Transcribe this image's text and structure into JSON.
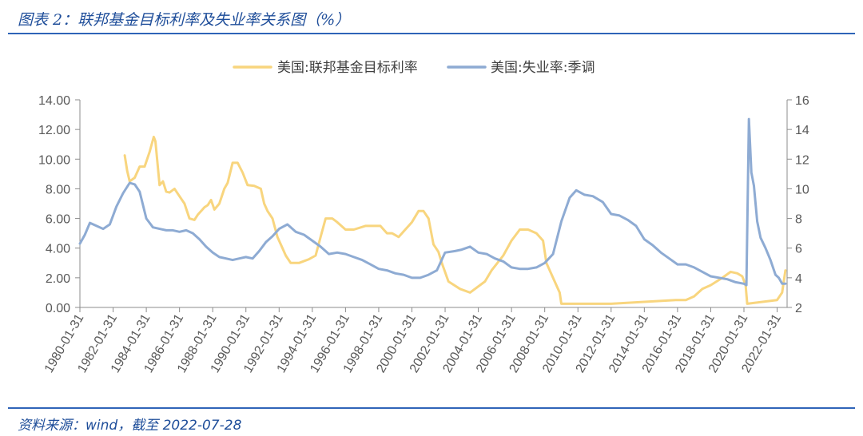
{
  "header": {
    "title": "图表 2：联邦基金目标利率及失业率关系图（%）"
  },
  "footer": {
    "source": "资料来源：wind，截至 2022-07-28"
  },
  "chart_data": {
    "type": "line",
    "xlabel": "",
    "ylabel_left": "",
    "ylabel_right": "",
    "x_ticks": [
      "1980-01-31",
      "1982-01-31",
      "1984-01-31",
      "1986-01-31",
      "1988-01-31",
      "1990-01-31",
      "1992-01-31",
      "1994-01-31",
      "1996-01-31",
      "1998-01-31",
      "2000-01-31",
      "2002-01-31",
      "2004-01-31",
      "2006-01-31",
      "2008-01-31",
      "2010-01-31",
      "2012-01-31",
      "2014-01-31",
      "2016-01-31",
      "2018-01-31",
      "2020-01-31",
      "2022-01-31"
    ],
    "x_range": [
      1980.0,
      2022.6
    ],
    "y_left": {
      "range": [
        0,
        14
      ],
      "ticks": [
        "0.00",
        "2.00",
        "4.00",
        "6.00",
        "8.00",
        "10.00",
        "12.00",
        "14.00"
      ]
    },
    "y_right": {
      "range": [
        2,
        16
      ],
      "ticks": [
        "2",
        "4",
        "6",
        "8",
        "10",
        "12",
        "14",
        "16"
      ]
    },
    "legend_position": "top-center",
    "grid": false,
    "series": [
      {
        "name": "美国:联邦基金目标利率",
        "axis": "left",
        "color": "#f8d57e",
        "x": [
          1982.7,
          1982.85,
          1983.0,
          1983.3,
          1983.6,
          1983.9,
          1984.2,
          1984.45,
          1984.55,
          1984.8,
          1985.0,
          1985.2,
          1985.4,
          1985.7,
          1986.0,
          1986.3,
          1986.6,
          1986.9,
          1987.1,
          1987.3,
          1987.5,
          1987.7,
          1987.9,
          1988.1,
          1988.4,
          1988.7,
          1988.9,
          1989.2,
          1989.5,
          1989.8,
          1990.1,
          1990.5,
          1990.9,
          1991.1,
          1991.3,
          1991.6,
          1991.9,
          1992.2,
          1992.4,
          1992.7,
          1993.2,
          1993.8,
          1994.2,
          1994.5,
          1994.8,
          1995.2,
          1995.5,
          1996.0,
          1996.5,
          1997.2,
          1997.6,
          1998.1,
          1998.5,
          1998.8,
          1999.2,
          1999.6,
          2000.0,
          2000.4,
          2000.7,
          2001.0,
          2001.3,
          2001.6,
          2001.8,
          2002.2,
          2002.9,
          2003.5,
          2004.4,
          2004.8,
          2005.5,
          2006.0,
          2006.5,
          2007.0,
          2007.5,
          2007.9,
          2008.1,
          2008.5,
          2008.9,
          2009.0,
          2012.0,
          2015.9,
          2016.5,
          2017.0,
          2017.5,
          2018.0,
          2018.7,
          2019.2,
          2019.6,
          2019.9,
          2020.1,
          2020.2,
          2022.0,
          2022.3,
          2022.5
        ],
        "y": [
          10.25,
          9.2,
          8.5,
          8.75,
          9.5,
          9.5,
          10.5,
          11.5,
          11.2,
          8.25,
          8.5,
          7.8,
          7.75,
          8.0,
          7.5,
          7.0,
          6.0,
          5.9,
          6.25,
          6.5,
          6.75,
          6.9,
          7.25,
          6.6,
          7.0,
          8.0,
          8.4,
          9.75,
          9.75,
          9.1,
          8.25,
          8.2,
          8.0,
          7.0,
          6.5,
          6.0,
          4.75,
          4.0,
          3.5,
          3.0,
          3.0,
          3.25,
          3.5,
          4.75,
          6.0,
          6.0,
          5.75,
          5.25,
          5.25,
          5.5,
          5.5,
          5.5,
          5.0,
          5.0,
          4.75,
          5.25,
          5.75,
          6.5,
          6.5,
          6.0,
          4.25,
          3.75,
          3.0,
          1.75,
          1.25,
          1.0,
          1.75,
          2.5,
          3.5,
          4.5,
          5.25,
          5.25,
          5.0,
          4.5,
          3.0,
          2.0,
          1.0,
          0.25,
          0.25,
          0.5,
          0.5,
          0.75,
          1.25,
          1.5,
          2.0,
          2.4,
          2.3,
          2.1,
          1.5,
          0.25,
          0.5,
          1.0,
          2.5
        ]
      },
      {
        "name": "美国:失业率:季调",
        "axis": "right",
        "color": "#8eabd3",
        "x": [
          1980.0,
          1980.3,
          1980.6,
          1981.0,
          1981.4,
          1981.8,
          1982.2,
          1982.6,
          1983.0,
          1983.3,
          1983.6,
          1984.0,
          1984.4,
          1984.8,
          1985.2,
          1985.6,
          1986.0,
          1986.4,
          1986.8,
          1987.2,
          1987.6,
          1988.0,
          1988.4,
          1988.8,
          1989.2,
          1989.6,
          1990.0,
          1990.4,
          1990.8,
          1991.2,
          1991.6,
          1992.0,
          1992.5,
          1993.0,
          1993.5,
          1994.0,
          1994.5,
          1995.0,
          1995.5,
          1996.0,
          1996.5,
          1997.0,
          1997.5,
          1998.0,
          1998.5,
          1999.0,
          1999.5,
          2000.0,
          2000.5,
          2001.0,
          2001.5,
          2002.0,
          2002.6,
          2003.0,
          2003.5,
          2004.0,
          2004.5,
          2005.0,
          2005.5,
          2006.0,
          2006.5,
          2007.0,
          2007.5,
          2008.0,
          2008.5,
          2009.0,
          2009.5,
          2009.9,
          2010.4,
          2010.9,
          2011.5,
          2012.0,
          2012.5,
          2013.0,
          2013.5,
          2014.0,
          2014.5,
          2015.0,
          2015.5,
          2016.0,
          2016.5,
          2017.0,
          2017.5,
          2018.0,
          2018.5,
          2019.0,
          2019.5,
          2020.0,
          2020.15,
          2020.3,
          2020.45,
          2020.6,
          2020.8,
          2021.0,
          2021.3,
          2021.6,
          2021.9,
          2022.1,
          2022.3,
          2022.5
        ],
        "y": [
          6.3,
          6.9,
          7.7,
          7.5,
          7.3,
          7.6,
          8.8,
          9.7,
          10.4,
          10.3,
          9.8,
          8.0,
          7.4,
          7.3,
          7.2,
          7.2,
          7.1,
          7.2,
          7.0,
          6.6,
          6.1,
          5.7,
          5.4,
          5.3,
          5.2,
          5.3,
          5.4,
          5.3,
          5.8,
          6.4,
          6.8,
          7.3,
          7.6,
          7.1,
          6.9,
          6.5,
          6.1,
          5.6,
          5.7,
          5.6,
          5.4,
          5.2,
          4.9,
          4.6,
          4.5,
          4.3,
          4.2,
          4.0,
          4.0,
          4.2,
          4.5,
          5.7,
          5.8,
          5.9,
          6.1,
          5.7,
          5.6,
          5.3,
          5.1,
          4.7,
          4.6,
          4.6,
          4.7,
          5.0,
          5.6,
          7.8,
          9.4,
          9.9,
          9.6,
          9.5,
          9.1,
          8.3,
          8.2,
          7.9,
          7.5,
          6.6,
          6.2,
          5.7,
          5.3,
          4.9,
          4.9,
          4.7,
          4.4,
          4.1,
          4.0,
          3.9,
          3.7,
          3.6,
          3.5,
          14.7,
          11.1,
          10.2,
          7.8,
          6.7,
          6.0,
          5.2,
          4.2,
          4.0,
          3.6,
          3.6
        ]
      }
    ]
  }
}
